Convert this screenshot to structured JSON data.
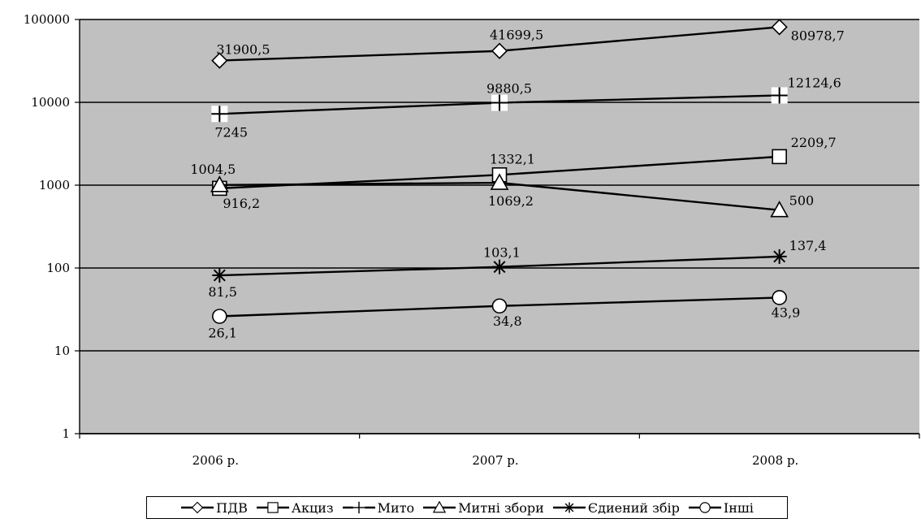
{
  "chart_data": {
    "type": "line",
    "title": "",
    "xlabel": "",
    "ylabel": "",
    "y_scale": "log",
    "ylim": [
      1,
      100000
    ],
    "y_ticks": [
      1,
      10,
      100,
      1000,
      10000,
      100000
    ],
    "grid": true,
    "legend_position": "bottom",
    "plot_background": "#c0c0c0",
    "categories": [
      "2006 р.",
      "2007 р.",
      "2008 р."
    ],
    "series": [
      {
        "name": "ПДВ",
        "marker": "diamond",
        "values": [
          31900.5,
          41699.5,
          80978.7
        ],
        "labels": [
          "31900,5",
          "41699,5",
          "80978,7"
        ]
      },
      {
        "name": "Акциз",
        "marker": "square",
        "values": [
          916.2,
          1332.1,
          2209.7
        ],
        "labels": [
          "916,2",
          "1332,1",
          "2209,7"
        ]
      },
      {
        "name": "Мито",
        "marker": "plus",
        "values": [
          7245,
          9880.5,
          12124.6
        ],
        "labels": [
          "7245",
          "9880,5",
          "12124,6"
        ]
      },
      {
        "name": "Митні збори",
        "marker": "triangle",
        "values": [
          1004.5,
          1069.2,
          500
        ],
        "labels": [
          "1004,5",
          "1069,2",
          "500"
        ]
      },
      {
        "name": "Єдиений збір",
        "marker": "star",
        "values": [
          81.5,
          103.1,
          137.4
        ],
        "labels": [
          "81,5",
          "103,1",
          "137,4"
        ]
      },
      {
        "name": "Інші",
        "marker": "circle",
        "values": [
          26.1,
          34.8,
          43.9
        ],
        "labels": [
          "26,1",
          "34,8",
          "43,9"
        ]
      }
    ]
  }
}
